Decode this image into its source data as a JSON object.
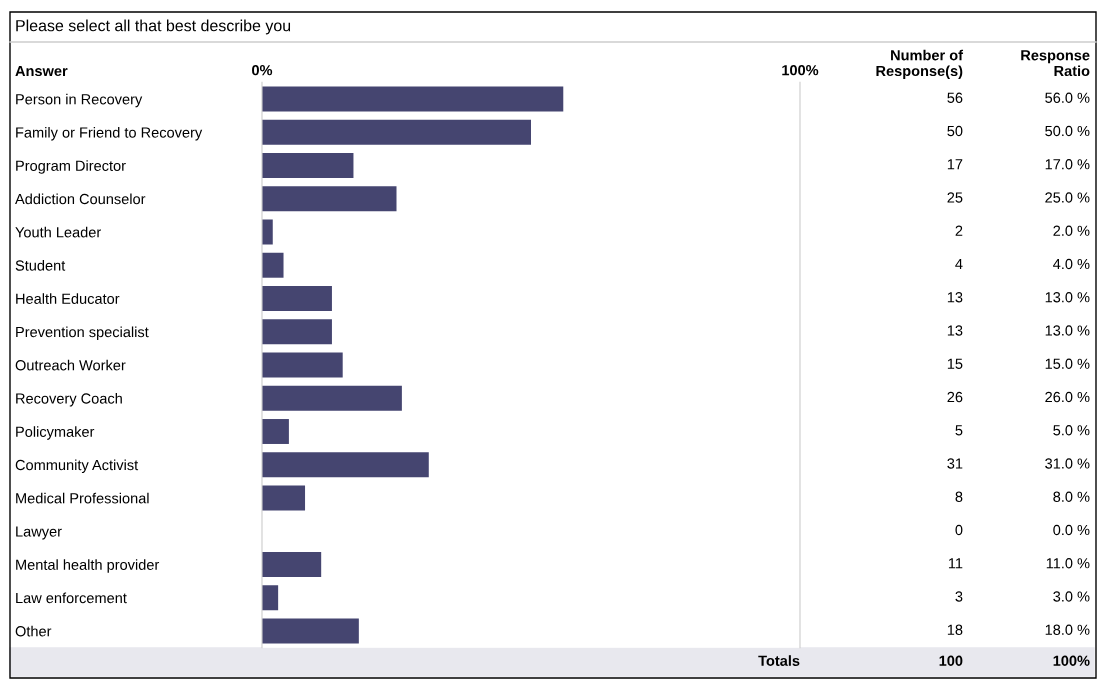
{
  "chart_data": {
    "type": "bar",
    "orientation": "horizontal",
    "title": "Please select all that best describe you",
    "categories": [
      "Person in Recovery",
      "Family or Friend to Recovery",
      "Program Director",
      "Addiction Counselor",
      "Youth Leader",
      "Student",
      "Health Educator",
      "Prevention specialist",
      "Outreach Worker",
      "Recovery Coach",
      "Policymaker",
      "Community Activist",
      "Medical Professional",
      "Lawyer",
      "Mental health provider",
      "Law enforcement",
      "Other"
    ],
    "values": [
      56,
      50,
      17,
      25,
      2,
      4,
      13,
      13,
      15,
      26,
      5,
      31,
      8,
      0,
      11,
      3,
      18
    ],
    "value_labels": [
      "56.0 %",
      "50.0 %",
      "17.0 %",
      "25.0 %",
      "2.0 %",
      "4.0 %",
      "13.0 %",
      "13.0 %",
      "15.0 %",
      "26.0 %",
      "5.0 %",
      "31.0 %",
      "8.0 %",
      "0.0 %",
      "11.0 %",
      "3.0 %",
      "18.0 %"
    ],
    "color": "#454570",
    "xlim": [
      0,
      100
    ],
    "xticks": [
      {
        "value": 0,
        "label": "0%"
      },
      {
        "value": 100,
        "label": "100%"
      }
    ],
    "grid": false,
    "annotations": [
      "Answer",
      "Number of\nResponse(s)",
      "Response\nRatio",
      "Totals",
      "100",
      "100%",
      "56",
      "50",
      "17",
      "25",
      "2",
      "4",
      "13",
      "13",
      "15",
      "26",
      "5",
      "31",
      "8",
      "0",
      "11",
      "3",
      "18"
    ]
  }
}
